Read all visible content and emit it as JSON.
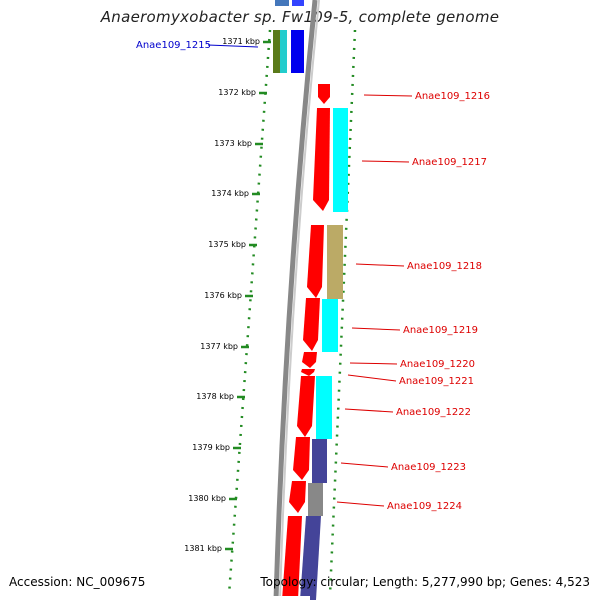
{
  "title": "Anaeromyxobacter sp. Fw109-5, complete genome",
  "footer": {
    "accession": "Accession: NC_009675",
    "summary": "Topology: circular; Length: 5,277,990 bp; Genes: 4,523"
  },
  "colors": {
    "forward_gene": "#ff0000",
    "selected_label": "#0000cc",
    "label": "#dd0000",
    "tick": "#228b22",
    "backbone": "#888888"
  },
  "ticks": [
    "1371 kbp",
    "1372 kbp",
    "1373 kbp",
    "1374 kbp",
    "1375 kbp",
    "1376 kbp",
    "1377 kbp",
    "1378 kbp",
    "1379 kbp",
    "1380 kbp",
    "1381 kbp"
  ],
  "genes": [
    {
      "label": "Anae109_1215",
      "selected": true
    },
    {
      "label": "Anae109_1216"
    },
    {
      "label": "Anae109_1217"
    },
    {
      "label": "Anae109_1218"
    },
    {
      "label": "Anae109_1219"
    },
    {
      "label": "Anae109_1220"
    },
    {
      "label": "Anae109_1221"
    },
    {
      "label": "Anae109_1222"
    },
    {
      "label": "Anae109_1223"
    },
    {
      "label": "Anae109_1224"
    }
  ]
}
